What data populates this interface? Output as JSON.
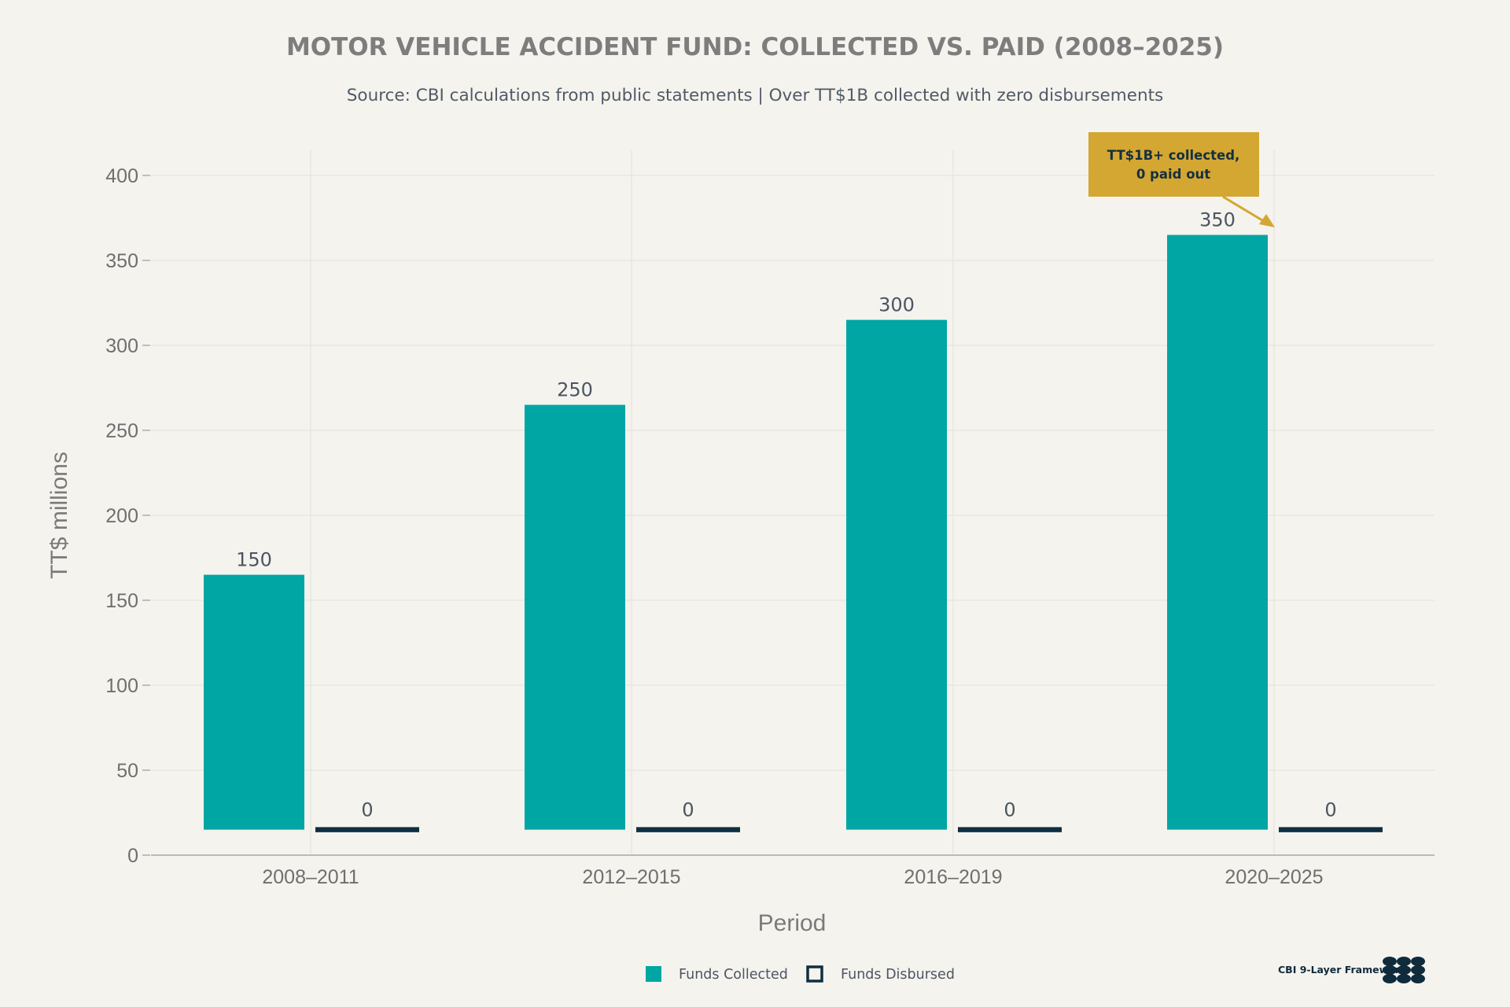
{
  "chart_data": {
    "type": "bar",
    "title": "MOTOR VEHICLE ACCIDENT FUND: COLLECTED VS. PAID (2008–2025)",
    "subtitle": "Source: CBI calculations from public statements | Over TT$1B collected with zero disbursements",
    "xlabel": "Period",
    "ylabel": "TT$ millions",
    "ylim": [
      0,
      415
    ],
    "yticks": [
      0,
      50,
      100,
      150,
      200,
      250,
      300,
      350,
      400
    ],
    "grid": true,
    "categories": [
      "2008–2011",
      "2012–2015",
      "2016–2019",
      "2020–2025"
    ],
    "series": [
      {
        "name": "Funds Collected",
        "color": "#00a6a4",
        "bar_base": 15,
        "bar_tops": [
          165,
          265,
          315,
          365
        ],
        "labels": [
          "150",
          "250",
          "300",
          "350"
        ]
      },
      {
        "name": "Funds Disbursed",
        "color": "#0f2f40",
        "bar_base": 13.5,
        "bar_tops": [
          16.5,
          16.5,
          16.5,
          16.5
        ],
        "labels": [
          "0",
          "0",
          "0",
          "0"
        ]
      }
    ],
    "legend_position": "bottom-center",
    "annotation": {
      "lines": [
        "TT$1B+ collected,",
        "0 paid out"
      ],
      "target_category": "2020–2025",
      "target_value": 370,
      "color": "#d4a632"
    },
    "branding": "CBI 9-Layer Framework"
  }
}
